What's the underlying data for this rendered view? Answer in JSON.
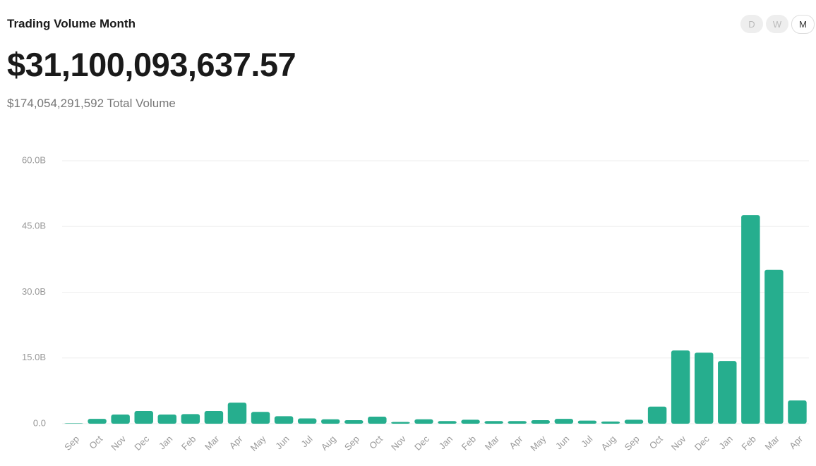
{
  "header": {
    "title": "Trading Volume Month",
    "value": "$31,100,093,637.57",
    "total": "$174,054,291,592 Total Volume",
    "buttons": [
      "D",
      "W",
      "M"
    ]
  },
  "chart_data": {
    "type": "bar",
    "color": "#26ae8e",
    "grid": true,
    "categories": [
      "Sep",
      "Oct",
      "Nov",
      "Dec",
      "Jan",
      "Feb",
      "Mar",
      "Apr",
      "May",
      "Jun",
      "Jul",
      "Aug",
      "Sep",
      "Oct",
      "Nov",
      "Dec",
      "Jan",
      "Feb",
      "Mar",
      "Apr",
      "May",
      "Jun",
      "Jul",
      "Aug",
      "Sep",
      "Oct",
      "Nov",
      "Dec",
      "Jan",
      "Feb",
      "Mar",
      "Apr"
    ],
    "values": [
      0.1,
      1.1,
      2.1,
      2.9,
      2.1,
      2.2,
      2.9,
      4.8,
      2.7,
      1.7,
      1.2,
      1.0,
      0.8,
      1.6,
      0.4,
      1.0,
      0.6,
      0.9,
      0.6,
      0.6,
      0.8,
      1.1,
      0.7,
      0.5,
      0.9,
      3.9,
      16.7,
      16.2,
      14.3,
      47.6,
      35.1,
      5.3
    ],
    "ylim": [
      0,
      60
    ],
    "yticks": [
      {
        "value": 0,
        "label": "0.0"
      },
      {
        "value": 15,
        "label": "15.0B"
      },
      {
        "value": 30,
        "label": "30.0B"
      },
      {
        "value": 45,
        "label": "45.0B"
      },
      {
        "value": 60,
        "label": "60.0B"
      }
    ]
  }
}
